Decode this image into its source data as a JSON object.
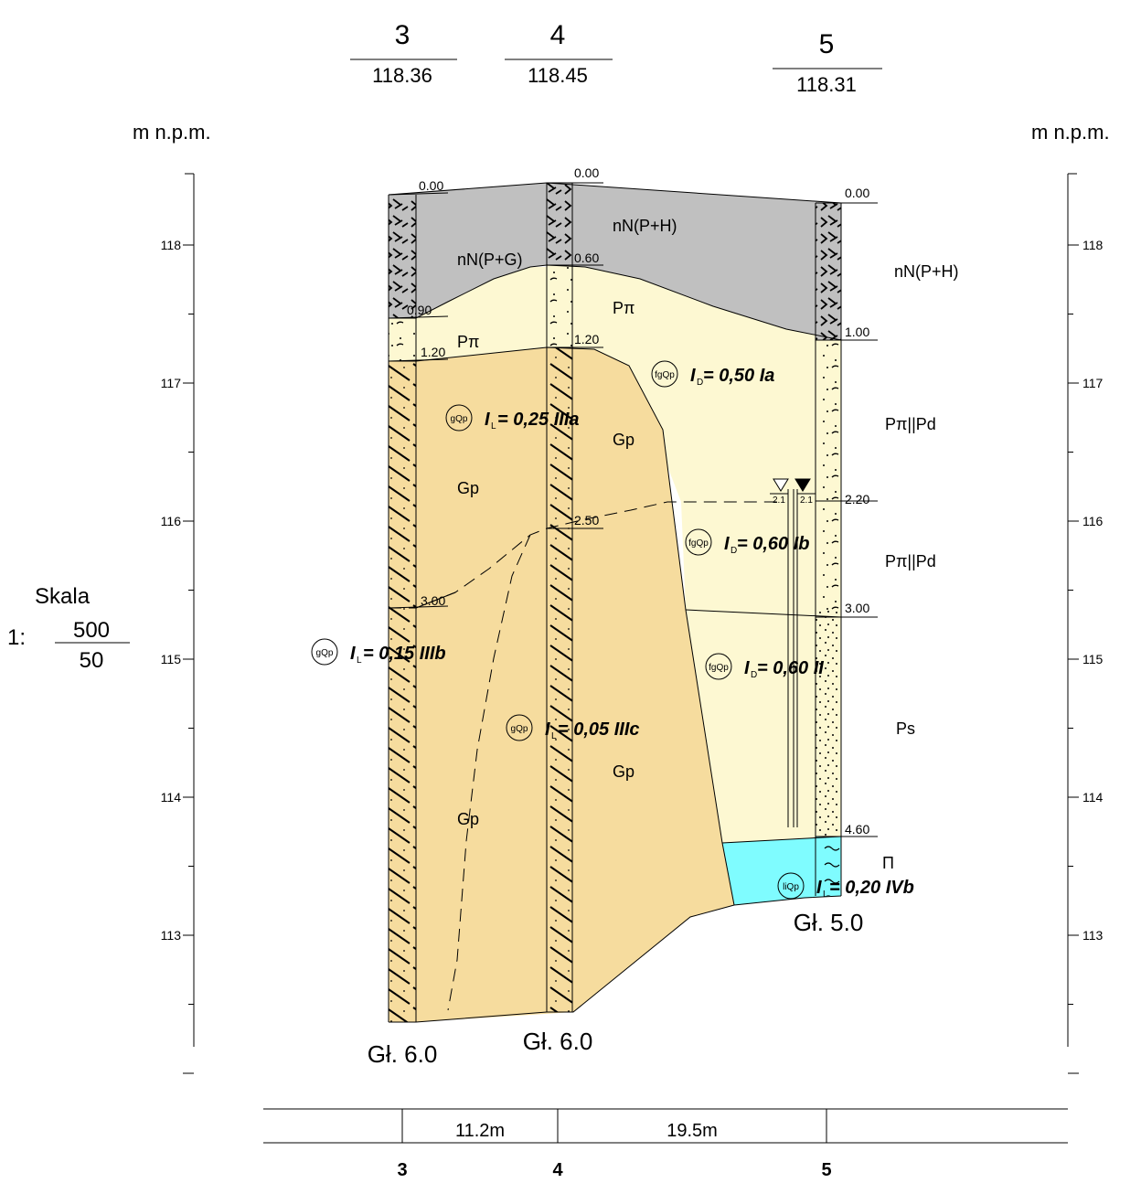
{
  "boreholes": [
    {
      "number": "3",
      "elevation": "118.36",
      "depth_label": "Gł. 6.0",
      "bottom_label": "3"
    },
    {
      "number": "4",
      "elevation": "118.45",
      "depth_label": "Gł. 6.0",
      "bottom_label": "4"
    },
    {
      "number": "5",
      "elevation": "118.31",
      "depth_label": "Gł. 5.0",
      "bottom_label": "5"
    }
  ],
  "unit_left": "m n.p.m.",
  "unit_right": "m n.p.m.",
  "axis_ticks": [
    "118",
    "117",
    "116",
    "115",
    "114",
    "113"
  ],
  "depth_labels": {
    "b3": [
      "0.00",
      "0.90",
      "1.20",
      "3.00"
    ],
    "b4": [
      "0.00",
      "0.60",
      "1.20",
      "2.50"
    ],
    "b5": [
      "0.00",
      "1.00",
      "2.20",
      "3.00",
      "4.60"
    ]
  },
  "soil_labels": {
    "nn_pg": "nN(P+G)",
    "nn_ph_center": "nN(P+H)",
    "nn_ph_right": "nN(P+H)",
    "ppi_left": "Pπ",
    "ppi_center": "Pπ",
    "ppi_pd_1": "Pπ||Pd",
    "ppi_pd_2": "Pπ||Pd",
    "ps": "Ps",
    "pi": "Π",
    "gp_1": "Gp",
    "gp_2": "Gp",
    "gp_3": "Gp",
    "gp_4": "Gp"
  },
  "indices": {
    "id_050_ia": "= 0,50 Ia",
    "il_025_iiia": "= 0,25 IIIa",
    "id_060_ib": "= 0,60 Ib",
    "il_015_iiib": "= 0,15 IIIb",
    "id_060_ii": "= 0,60 II",
    "il_005_iiic": "= 0,05 IIIc",
    "il_020_ivb": "= 0,20 IVb"
  },
  "index_letters": {
    "ID": "I",
    "ID_sub": "D",
    "IL": "I",
    "IL_sub": "L"
  },
  "geo_symbols": {
    "fg": "fgQp",
    "g": "gQp",
    "li": "liQp"
  },
  "water_level": "2.1",
  "scale": {
    "label": "Skala",
    "prefix": "1:",
    "numerator": "500",
    "denominator": "50"
  },
  "distances": [
    "11.2m",
    "19.5m"
  ]
}
